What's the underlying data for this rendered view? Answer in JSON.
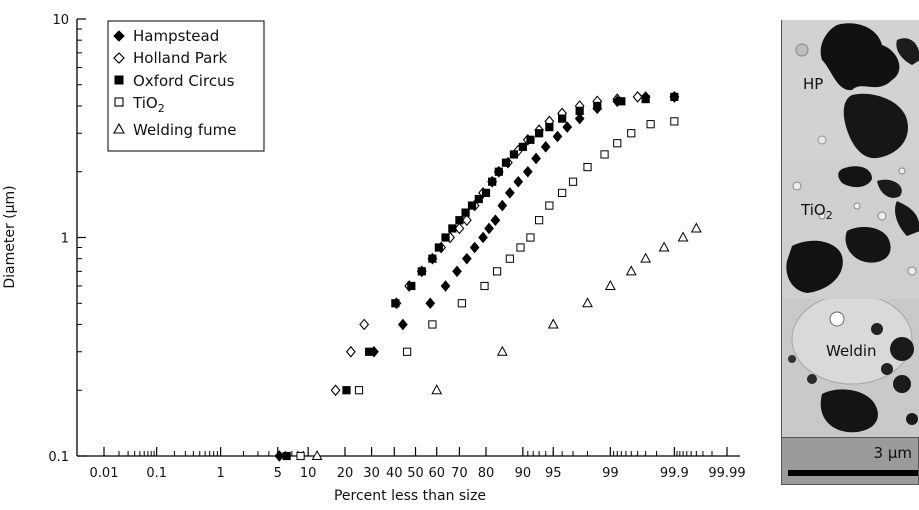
{
  "chart_data": {
    "type": "scatter",
    "ylabel": "Diameter (μm)",
    "xlabel": "Percent less than size",
    "x_scale": "probability",
    "y_scale": "log",
    "ylim": [
      0.1,
      10
    ],
    "y_ticks": [
      "0.1",
      "1",
      "10"
    ],
    "x_ticks": [
      "0.01",
      "0.1",
      "1",
      "5",
      "10",
      "20",
      "30",
      "40",
      "50",
      "60",
      "70",
      "80",
      "90",
      "95",
      "99",
      "99.9",
      "99.99"
    ],
    "legend_position": "top-left",
    "series": [
      {
        "name": "Hampstead",
        "marker": "diamond-filled",
        "x": [
          5.2,
          31,
          44,
          57,
          64,
          69,
          73,
          76,
          79,
          81,
          83,
          85,
          87,
          89,
          91,
          92.5,
          94,
          95.5,
          96.5,
          97.5,
          98.5,
          99.2,
          99.7,
          99.9
        ],
        "y": [
          0.1,
          0.3,
          0.4,
          0.5,
          0.6,
          0.7,
          0.8,
          0.9,
          1.0,
          1.1,
          1.2,
          1.4,
          1.6,
          1.8,
          2.0,
          2.3,
          2.6,
          2.9,
          3.2,
          3.5,
          3.9,
          4.2,
          4.4,
          4.4
        ]
      },
      {
        "name": "Holland Park",
        "marker": "diamond-open",
        "x": [
          17,
          22,
          27,
          41,
          47,
          53,
          58,
          62,
          66,
          70,
          73,
          76,
          79,
          82,
          84,
          86.5,
          89,
          91,
          93,
          94.5,
          96,
          97.5,
          98.5,
          99.2,
          99.6,
          99.9
        ],
        "y": [
          0.2,
          0.3,
          0.4,
          0.5,
          0.6,
          0.7,
          0.8,
          0.9,
          1.0,
          1.1,
          1.2,
          1.4,
          1.6,
          1.8,
          2.0,
          2.2,
          2.5,
          2.8,
          3.1,
          3.4,
          3.7,
          4.0,
          4.2,
          4.3,
          4.4,
          4.4
        ]
      },
      {
        "name": "Oxford Circus",
        "marker": "square-filled",
        "x": [
          6.2,
          20.5,
          29,
          40.5,
          48,
          53,
          58,
          61,
          64,
          67,
          70,
          72.5,
          75,
          77.5,
          80,
          82,
          84,
          86,
          88,
          90,
          91.5,
          93,
          94.5,
          96,
          97.5,
          98.5,
          99.3,
          99.7,
          99.9
        ],
        "y": [
          0.1,
          0.2,
          0.3,
          0.5,
          0.6,
          0.7,
          0.8,
          0.9,
          1.0,
          1.1,
          1.2,
          1.3,
          1.4,
          1.5,
          1.6,
          1.8,
          2.0,
          2.2,
          2.4,
          2.6,
          2.8,
          3.0,
          3.2,
          3.5,
          3.8,
          4.0,
          4.2,
          4.3,
          4.4
        ]
      },
      {
        "name": "TiO2",
        "marker": "square-open",
        "x": [
          8.5,
          25,
          46,
          58,
          71,
          79.5,
          83.5,
          87,
          89.5,
          91.5,
          93,
          94.5,
          96,
          97,
          98,
          98.8,
          99.2,
          99.5,
          99.75,
          99.9
        ],
        "y": [
          0.1,
          0.2,
          0.3,
          0.4,
          0.5,
          0.6,
          0.7,
          0.8,
          0.9,
          1.0,
          1.2,
          1.4,
          1.6,
          1.8,
          2.1,
          2.4,
          2.7,
          3.0,
          3.3,
          3.4
        ]
      },
      {
        "name": "Welding fume",
        "marker": "triangle-open",
        "x": [
          12,
          60,
          85,
          95,
          98,
          99,
          99.5,
          99.7,
          99.85,
          99.93,
          99.96
        ],
        "y": [
          0.1,
          0.2,
          0.3,
          0.4,
          0.5,
          0.6,
          0.7,
          0.8,
          0.9,
          1.0,
          1.1
        ]
      }
    ]
  },
  "legend_labels": {
    "hampstead": "Hampstead",
    "holland_park": "Holland Park",
    "oxford_circus": "Oxford Circus",
    "tio2_base": "TiO",
    "tio2_sub": "2",
    "welding_fume": "Welding fume"
  },
  "micrograph_panels": [
    {
      "label": "HP"
    },
    {
      "label_base": "TiO",
      "label_sub": "2"
    },
    {
      "label": "Weldin"
    }
  ],
  "scale_bar": {
    "label": "3 μm"
  }
}
